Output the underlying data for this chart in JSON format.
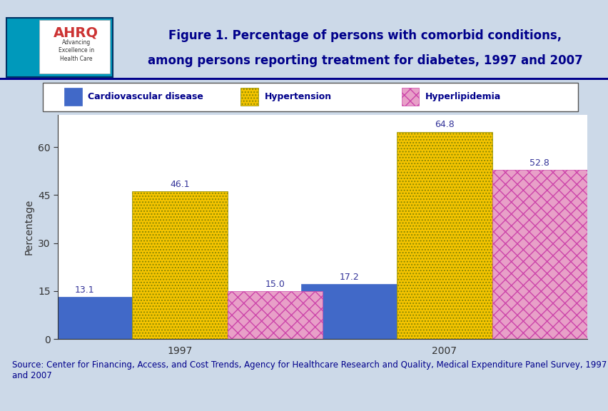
{
  "title_line1": "Figure 1. Percentage of persons with comorbid conditions,",
  "title_line2": "among persons reporting treatment for diabetes, 1997 and 2007",
  "years": [
    "1997",
    "2007"
  ],
  "series": [
    {
      "label": "Cardiovascular disease",
      "values": [
        13.1,
        17.2
      ],
      "color": "#4169c8",
      "hatch": null,
      "edgecolor": "#4169c8"
    },
    {
      "label": "Hypertension",
      "values": [
        46.1,
        64.8
      ],
      "color": "#f5c400",
      "hatch": "....",
      "edgecolor": "#888800"
    },
    {
      "label": "Hyperlipidemia",
      "values": [
        15.0,
        52.8
      ],
      "color": "#e8a0c8",
      "hatch": "xx",
      "edgecolor": "#cc44aa"
    }
  ],
  "ylabel": "Percentage",
  "ylim": [
    0,
    70
  ],
  "yticks": [
    0,
    15,
    30,
    45,
    60
  ],
  "bar_width": 0.18,
  "source_text": "Source: Center for Financing, Access, and Cost Trends, Agency for Healthcare Research and Quality, Medical Expenditure Panel Survey, 1997\nand 2007",
  "background_color": "#ccd9e8",
  "plot_bg_color": "#ffffff",
  "header_bg_color": "#ffffff",
  "title_color": "#00008B",
  "label_fontsize": 9,
  "title_fontsize": 12,
  "axis_fontsize": 10,
  "source_fontsize": 8.5,
  "legend_fontsize": 9
}
